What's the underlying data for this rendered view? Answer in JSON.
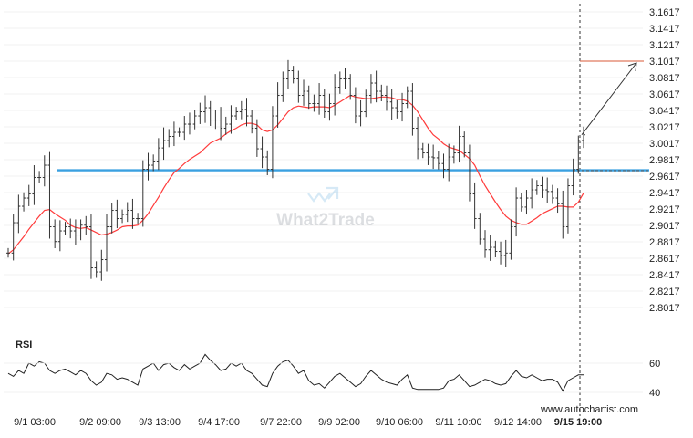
{
  "chart_data": {
    "type": "ohlc",
    "xlabel": "",
    "ylabel": "",
    "ylim": [
      2.7817,
      3.1717
    ],
    "y_ticks": [
      "3.1617",
      "3.1417",
      "3.1217",
      "3.1017",
      "3.0817",
      "3.0617",
      "3.0417",
      "3.0217",
      "3.0017",
      "2.9817",
      "2.9617",
      "2.9417",
      "2.9217",
      "2.9017",
      "2.8817",
      "2.8617",
      "2.8417",
      "2.8217",
      "2.8017"
    ],
    "x_ticks": [
      "9/1 03:00",
      "9/2 09:00",
      "9/3 13:00",
      "9/4 17:00",
      "9/7 22:00",
      "9/9 02:00",
      "9/10 06:00",
      "9/11 10:00",
      "9/12 14:00",
      "9/15 19:00"
    ],
    "highlight_x_tick": "9/15 19:00",
    "support_level": 2.9689,
    "target_level": 3.1017,
    "moving_average_color": "#ff3b3b",
    "price_color": "#333333",
    "support_color": "#3aa0e0",
    "target_color": "#e07a5f",
    "closes": [
      2.868,
      2.905,
      2.925,
      2.935,
      2.94,
      2.96,
      2.96,
      2.975,
      2.9,
      2.882,
      2.895,
      2.9,
      2.895,
      2.89,
      2.902,
      2.9,
      2.85,
      2.845,
      2.86,
      2.9,
      2.92,
      2.91,
      2.915,
      2.92,
      2.91,
      2.91,
      2.97,
      2.975,
      2.98,
      2.996,
      3.005,
      3.01,
      3.015,
      3.015,
      3.025,
      3.025,
      3.035,
      3.04,
      3.045,
      3.03,
      3.03,
      3.02,
      3.025,
      3.035,
      3.04,
      3.043,
      3.035,
      3.02,
      2.995,
      2.985,
      2.97,
      3.035,
      3.06,
      3.08,
      3.09,
      3.08,
      3.06,
      3.065,
      3.05,
      3.05,
      3.06,
      3.04,
      3.05,
      3.07,
      3.08,
      3.08,
      3.06,
      3.035,
      3.04,
      3.06,
      3.075,
      3.065,
      3.06,
      3.052,
      3.045,
      3.04,
      3.05,
      3.065,
      3.02,
      2.995,
      2.99,
      2.985,
      2.984,
      2.977,
      2.97,
      2.985,
      2.99,
      3.01,
      2.99,
      2.94,
      2.91,
      2.885,
      2.872,
      2.875,
      2.87,
      2.865,
      2.868,
      2.9,
      2.935,
      2.924,
      2.935,
      2.945,
      2.95,
      2.945,
      2.943,
      2.935,
      2.928,
      2.9,
      2.95,
      2.97,
      3.005,
      3.012
    ],
    "ma": [
      2.867,
      2.872,
      2.88,
      2.888,
      2.897,
      2.905,
      2.913,
      2.92,
      2.921,
      2.916,
      2.912,
      2.908,
      2.902,
      2.899,
      2.898,
      2.899,
      2.896,
      2.893,
      2.89,
      2.891,
      2.893,
      2.896,
      2.9,
      2.901,
      2.901,
      2.902,
      2.908,
      2.916,
      2.926,
      2.936,
      2.947,
      2.957,
      2.966,
      2.971,
      2.977,
      2.982,
      2.986,
      2.99,
      2.996,
      3.002,
      3.005,
      3.008,
      3.013,
      3.017,
      3.02,
      3.024,
      3.026,
      3.026,
      3.024,
      3.018,
      3.016,
      3.018,
      3.024,
      3.032,
      3.04,
      3.045,
      3.047,
      3.046,
      3.045,
      3.046,
      3.046,
      3.046,
      3.045,
      3.048,
      3.052,
      3.056,
      3.06,
      3.058,
      3.057,
      3.056,
      3.056,
      3.057,
      3.058,
      3.058,
      3.057,
      3.055,
      3.055,
      3.053,
      3.048,
      3.04,
      3.03,
      3.02,
      3.012,
      3.007,
      3.001,
      2.997,
      2.995,
      2.993,
      2.988,
      2.983,
      2.975,
      2.962,
      2.95,
      2.94,
      2.93,
      2.921,
      2.913,
      2.908,
      2.905,
      2.903,
      2.903,
      2.907,
      2.911,
      2.916,
      2.919,
      2.922,
      2.925,
      2.925,
      2.924,
      2.924,
      2.93,
      2.941
    ],
    "rsi": {
      "label": "RSI",
      "ticks": [
        "60",
        "40"
      ],
      "values": [
        53,
        51,
        55,
        53,
        60,
        58,
        61,
        60,
        55,
        53,
        55,
        56,
        54,
        52,
        55,
        53,
        48,
        45,
        47,
        53,
        52,
        49,
        50,
        49,
        47,
        45,
        56,
        58,
        60,
        55,
        59,
        60,
        57,
        55,
        59,
        56,
        58,
        60,
        66,
        62,
        59,
        55,
        56,
        60,
        58,
        60,
        55,
        53,
        49,
        45,
        44,
        53,
        58,
        61,
        62,
        58,
        53,
        55,
        48,
        45,
        46,
        43,
        47,
        51,
        53,
        50,
        47,
        44,
        46,
        51,
        55,
        52,
        49,
        47,
        46,
        45,
        49,
        52,
        43,
        42,
        42,
        42,
        42,
        42,
        43,
        48,
        49,
        52,
        48,
        44,
        45,
        47,
        49,
        48,
        46,
        45,
        46,
        51,
        55,
        51,
        50,
        52,
        50,
        48,
        49,
        49,
        47,
        41,
        48,
        50,
        52,
        52
      ]
    }
  },
  "watermark": "What2Trade",
  "footer_source": "www.autochartist.com"
}
